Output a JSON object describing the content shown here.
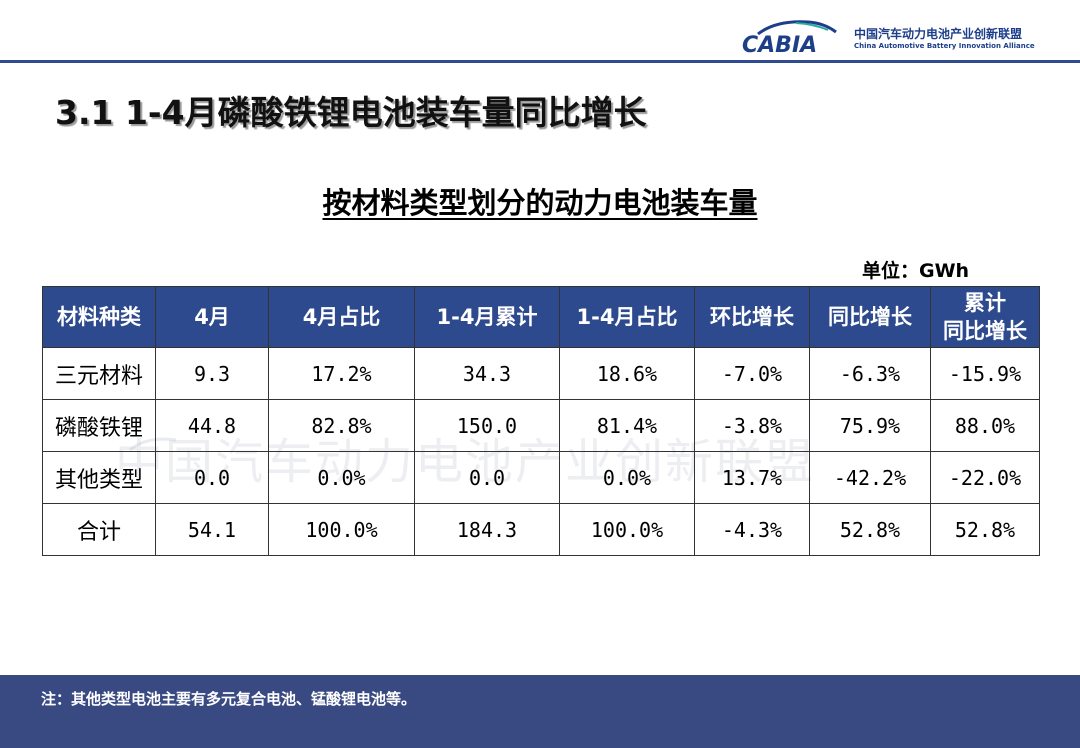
{
  "header": {
    "logo_text": "CABIA",
    "org_name_cn": "中国汽车动力电池产业创新联盟",
    "org_name_en": "China Automotive Battery Innovation Alliance"
  },
  "page": {
    "title": "3.1 1-4月磷酸铁锂电池装车量同比增长",
    "table_title": "按材料类型划分的动力电池装车量",
    "unit": "单位：GWh",
    "watermark": "中国汽车动力电池产业创新联盟"
  },
  "table": {
    "headers": [
      "材料种类",
      "4月",
      "4月占比",
      "1-4月累计",
      "1-4月占比",
      "环比增长",
      "同比增长",
      [
        "累计",
        "同比增长"
      ]
    ],
    "rows": [
      [
        "三元材料",
        "9.3",
        "17.2%",
        "34.3",
        "18.6%",
        "-7.0%",
        "-6.3%",
        "-15.9%"
      ],
      [
        "磷酸铁锂",
        "44.8",
        "82.8%",
        "150.0",
        "81.4%",
        "-3.8%",
        "75.9%",
        "88.0%"
      ],
      [
        "其他类型",
        "0.0",
        "0.0%",
        "0.0",
        "0.0%",
        "13.7%",
        "-42.2%",
        "-22.0%"
      ],
      [
        "合计",
        "54.1",
        "100.0%",
        "184.3",
        "100.0%",
        "-4.3%",
        "52.8%",
        "52.8%"
      ]
    ]
  },
  "footer": {
    "note": "注：其他类型电池主要有多元复合电池、锰酸锂电池等。"
  },
  "colors": {
    "header_blue": "#2e4a8e",
    "footer_blue": "#394a82",
    "logo_blue": "#1d3f8a"
  }
}
